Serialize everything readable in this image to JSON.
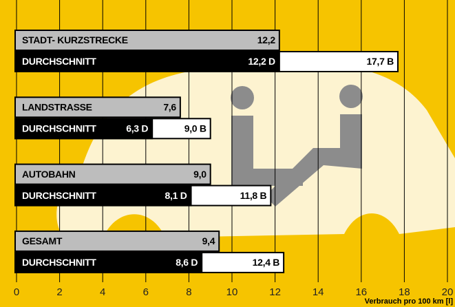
{
  "chart_data": {
    "type": "bar",
    "categories": [
      "STADT- KURZSTRECKE",
      "LANDSTRASSE",
      "AUTOBAHN",
      "GESAMT"
    ],
    "series": [
      {
        "color": "#bdbdbd",
        "values": [
          12.2,
          7.6,
          9.0,
          9.4
        ],
        "value_labels": [
          "12,2",
          "7,6",
          "9,0",
          "9,4"
        ]
      },
      {
        "name": "DURCHSCHNITT",
        "color": "#000000",
        "values": [
          12.2,
          6.3,
          8.1,
          8.6
        ],
        "value_labels": [
          "12,2 D",
          "6,3 D",
          "8,1 D",
          "8,6 D"
        ]
      },
      {
        "color": "#ffffff",
        "values": [
          17.7,
          9.0,
          11.8,
          12.4
        ],
        "value_labels": [
          "17,7 B",
          "9,0 B",
          "11,8 B",
          "12,4 B"
        ]
      }
    ],
    "xlabel": "Verbrauch pro 100 km [l]",
    "xlim": [
      0,
      20
    ],
    "xticks": [
      0,
      2,
      4,
      6,
      8,
      10,
      12,
      14,
      16,
      18,
      20
    ],
    "grid": true,
    "background": "#f6c400"
  }
}
